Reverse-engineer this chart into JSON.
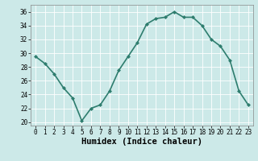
{
  "x": [
    0,
    1,
    2,
    3,
    4,
    5,
    6,
    7,
    8,
    9,
    10,
    11,
    12,
    13,
    14,
    15,
    16,
    17,
    18,
    19,
    20,
    21,
    22,
    23
  ],
  "y": [
    29.5,
    28.5,
    27.0,
    25.0,
    23.5,
    20.2,
    22.0,
    22.5,
    24.5,
    27.5,
    29.5,
    31.5,
    34.2,
    35.0,
    35.2,
    36.0,
    35.2,
    35.2,
    34.0,
    32.0,
    31.0,
    29.0,
    24.5,
    22.5
  ],
  "line_color": "#2e7d6e",
  "marker": "D",
  "marker_size": 2,
  "bg_color": "#cce9e8",
  "grid_color": "#ffffff",
  "xlabel": "Humidex (Indice chaleur)",
  "xlim": [
    -0.5,
    23.5
  ],
  "ylim": [
    19.5,
    37
  ],
  "yticks": [
    20,
    22,
    24,
    26,
    28,
    30,
    32,
    34,
    36
  ],
  "xticks": [
    0,
    1,
    2,
    3,
    4,
    5,
    6,
    7,
    8,
    9,
    10,
    11,
    12,
    13,
    14,
    15,
    16,
    17,
    18,
    19,
    20,
    21,
    22,
    23
  ],
  "tick_fontsize": 5.5,
  "xlabel_fontsize": 7.5,
  "linewidth": 1.2
}
